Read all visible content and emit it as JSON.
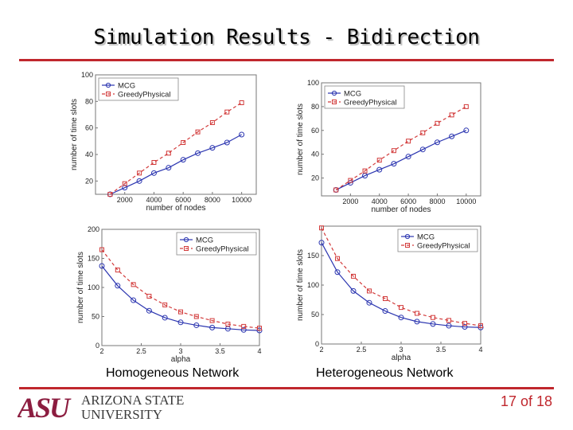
{
  "slide": {
    "title": "Simulation Results - Bidirection",
    "caption_left": "Homogeneous Network",
    "caption_right": "Heterogeneous Network",
    "page_label": "17 of 18",
    "logo_mark": "ASU",
    "logo_line1": "ARIZONA STATE",
    "logo_line2": "UNIVERSITY",
    "accent_color": "#c0272d"
  },
  "chart_data": [
    {
      "id": "homog-nodes",
      "type": "line",
      "xlabel": "number of nodes",
      "ylabel": "number of time slots",
      "xlim": [
        0,
        11000
      ],
      "ylim": [
        10,
        100
      ],
      "xticks": [
        2000,
        4000,
        6000,
        8000,
        10000
      ],
      "xtick_labels": [
        "2000",
        "4000",
        "6000",
        "8000",
        "10000"
      ],
      "yticks": [
        20,
        40,
        60,
        80,
        100
      ],
      "ytick_labels": [
        "20",
        "40",
        "60",
        "80",
        "100"
      ],
      "x": [
        1000,
        2000,
        3000,
        4000,
        5000,
        6000,
        7000,
        8000,
        9000,
        10000
      ],
      "series": [
        {
          "name": "MCG",
          "color": "#2b35b0",
          "marker": "circle",
          "dash": "",
          "values": [
            10,
            15,
            20,
            26,
            30,
            36,
            41,
            45,
            49,
            55
          ]
        },
        {
          "name": "GreedyPhysical",
          "color": "#d23a3a",
          "marker": "square",
          "dash": "4,3",
          "values": [
            10,
            18,
            26,
            34,
            41,
            49,
            57,
            64,
            72,
            79
          ]
        }
      ]
    },
    {
      "id": "heterog-nodes",
      "type": "line",
      "xlabel": "number of nodes",
      "ylabel": "number of time slots",
      "xlim": [
        0,
        11000
      ],
      "ylim": [
        5,
        100
      ],
      "xticks": [
        2000,
        4000,
        6000,
        8000,
        10000
      ],
      "xtick_labels": [
        "2000",
        "4000",
        "6000",
        "8000",
        "10000"
      ],
      "yticks": [
        20,
        40,
        60,
        80,
        100
      ],
      "ytick_labels": [
        "20",
        "40",
        "60",
        "80",
        "100"
      ],
      "x": [
        1000,
        2000,
        3000,
        4000,
        5000,
        6000,
        7000,
        8000,
        9000,
        10000
      ],
      "series": [
        {
          "name": "MCG",
          "color": "#2b35b0",
          "marker": "circle",
          "dash": "",
          "values": [
            10,
            16,
            22,
            27,
            32,
            38,
            44,
            50,
            55,
            60
          ]
        },
        {
          "name": "GreedyPhysical",
          "color": "#d23a3a",
          "marker": "square",
          "dash": "4,3",
          "values": [
            10,
            18,
            26,
            35,
            43,
            51,
            58,
            66,
            73,
            80
          ]
        }
      ]
    },
    {
      "id": "homog-alpha",
      "type": "line",
      "xlabel": "alpha",
      "ylabel": "number of time slots",
      "xlim": [
        2,
        4
      ],
      "ylim": [
        0,
        200
      ],
      "xticks": [
        2,
        2.5,
        3,
        3.5,
        4
      ],
      "xtick_labels": [
        "2",
        "2.5",
        "3",
        "3.5",
        "4"
      ],
      "yticks": [
        0,
        50,
        100,
        150,
        200
      ],
      "ytick_labels": [
        "0",
        "50",
        "100",
        "150",
        "200"
      ],
      "x": [
        2,
        2.2,
        2.4,
        2.6,
        2.8,
        3,
        3.2,
        3.4,
        3.6,
        3.8,
        4
      ],
      "series": [
        {
          "name": "MCG",
          "color": "#2b35b0",
          "marker": "circle",
          "dash": "",
          "values": [
            137,
            103,
            78,
            60,
            48,
            40,
            35,
            31,
            29,
            27,
            26
          ]
        },
        {
          "name": "GreedyPhysical",
          "color": "#d23a3a",
          "marker": "square",
          "dash": "4,3",
          "values": [
            165,
            130,
            105,
            85,
            70,
            58,
            50,
            43,
            37,
            33,
            30
          ]
        }
      ]
    },
    {
      "id": "heterog-alpha",
      "type": "line",
      "xlabel": "alpha",
      "ylabel": "number of time slots",
      "xlim": [
        2,
        4
      ],
      "ylim": [
        0,
        200
      ],
      "xticks": [
        2,
        2.5,
        3,
        3.5,
        4
      ],
      "xtick_labels": [
        "2",
        "2.5",
        "3",
        "3.5",
        "4"
      ],
      "yticks": [
        0,
        50,
        100,
        150
      ],
      "ytick_labels": [
        "0",
        "50",
        "100",
        "150"
      ],
      "x": [
        2,
        2.2,
        2.4,
        2.6,
        2.8,
        3,
        3.2,
        3.4,
        3.6,
        3.8,
        4
      ],
      "series": [
        {
          "name": "MCG",
          "color": "#2b35b0",
          "marker": "circle",
          "dash": "",
          "values": [
            172,
            122,
            90,
            70,
            56,
            45,
            38,
            34,
            31,
            29,
            28
          ]
        },
        {
          "name": "GreedyPhysical",
          "color": "#d23a3a",
          "marker": "square",
          "dash": "4,3",
          "values": [
            197,
            145,
            115,
            90,
            77,
            62,
            52,
            45,
            40,
            35,
            31
          ]
        }
      ]
    }
  ]
}
